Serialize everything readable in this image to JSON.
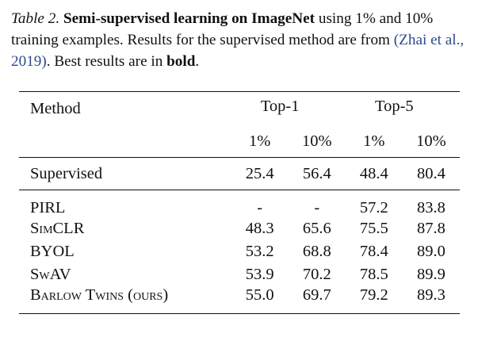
{
  "caption": {
    "label": "Table 2.",
    "title": "Semi-supervised learning on ImageNet",
    "text_1": " using 1% and 10% training examples.  Results for the supervised method are from ",
    "citation": "(Zhai et al., 2019)",
    "text_2": ". Best results are in ",
    "bold_word": "bold",
    "text_3": "."
  },
  "table": {
    "method_header": "Method",
    "groups": [
      "Top-1",
      "Top-5"
    ],
    "subheaders": [
      "1%",
      "10%",
      "1%",
      "10%"
    ],
    "supervised": {
      "method": "Supervised",
      "values": [
        "25.4",
        "56.4",
        "48.4",
        "80.4"
      ]
    },
    "rows": [
      {
        "method": "PIRL",
        "values": [
          "-",
          "-",
          "57.2",
          "83.8"
        ],
        "bold": [
          false,
          false,
          false,
          false
        ]
      },
      {
        "method": "SimCLR",
        "values": [
          "48.3",
          "65.6",
          "75.5",
          "87.8"
        ],
        "bold": [
          false,
          false,
          false,
          false
        ]
      },
      {
        "method": "BYOL",
        "values": [
          "53.2",
          "68.8",
          "78.4",
          "89.0"
        ],
        "bold": [
          false,
          false,
          false,
          false
        ]
      },
      {
        "method": "SwAV",
        "values": [
          "53.9",
          "70.2",
          "78.5",
          "89.9"
        ],
        "bold": [
          false,
          true,
          false,
          true
        ]
      },
      {
        "method": "Barlow Twins (ours)",
        "values": [
          "55.0",
          "69.7",
          "79.2",
          "89.3"
        ],
        "bold": [
          true,
          false,
          true,
          false
        ]
      }
    ]
  }
}
